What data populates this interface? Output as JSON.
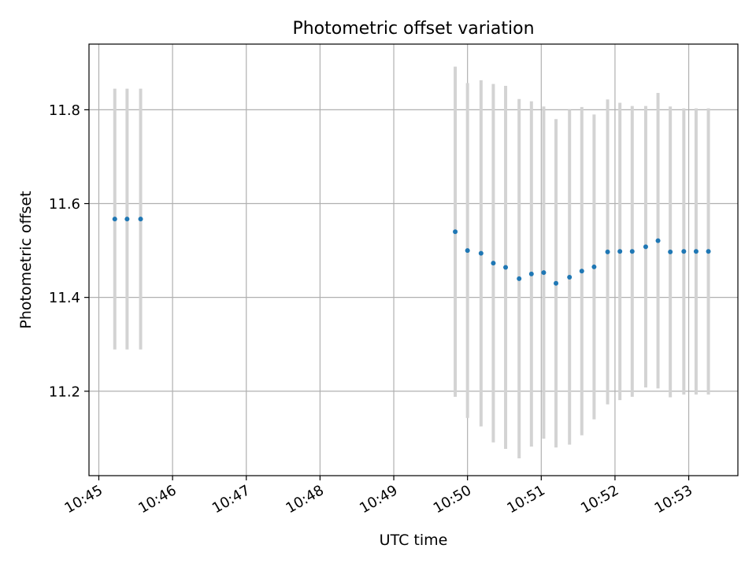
{
  "chart_data": {
    "type": "scatter",
    "title": "Photometric offset variation",
    "xlabel": "UTC time",
    "ylabel": "Photometric offset",
    "x_ticks": [
      "10:45",
      "10:46",
      "10:47",
      "10:48",
      "10:49",
      "10:50",
      "10:51",
      "10:52",
      "10:53"
    ],
    "y_ticks": [
      "11.2",
      "11.4",
      "11.6",
      "11.8"
    ],
    "xlim": [
      "10:44:52",
      "10:53:40"
    ],
    "ylim": [
      11.02,
      11.94
    ],
    "grid": true,
    "colors": {
      "point": "#1f77b4",
      "errorbar": "#d3d3d3",
      "grid": "#b0b0b0"
    },
    "points": [
      {
        "t": "10:45:13",
        "y": 11.567,
        "err": 0.278
      },
      {
        "t": "10:45:23",
        "y": 11.567,
        "err": 0.278
      },
      {
        "t": "10:45:34",
        "y": 11.567,
        "err": 0.278
      },
      {
        "t": "10:49:50",
        "y": 11.54,
        "err": 0.352
      },
      {
        "t": "10:50:00",
        "y": 11.5,
        "err": 0.357
      },
      {
        "t": "10:50:11",
        "y": 11.494,
        "err": 0.369
      },
      {
        "t": "10:50:21",
        "y": 11.473,
        "err": 0.382
      },
      {
        "t": "10:50:31",
        "y": 11.464,
        "err": 0.387
      },
      {
        "t": "10:50:42",
        "y": 11.44,
        "err": 0.383
      },
      {
        "t": "10:50:52",
        "y": 11.45,
        "err": 0.368
      },
      {
        "t": "10:51:02",
        "y": 11.453,
        "err": 0.354
      },
      {
        "t": "10:51:12",
        "y": 11.43,
        "err": 0.35
      },
      {
        "t": "10:51:23",
        "y": 11.443,
        "err": 0.357
      },
      {
        "t": "10:51:33",
        "y": 11.456,
        "err": 0.35
      },
      {
        "t": "10:51:43",
        "y": 11.465,
        "err": 0.325
      },
      {
        "t": "10:51:54",
        "y": 11.497,
        "err": 0.325
      },
      {
        "t": "10:52:04",
        "y": 11.498,
        "err": 0.317
      },
      {
        "t": "10:52:14",
        "y": 11.498,
        "err": 0.31
      },
      {
        "t": "10:52:25",
        "y": 11.508,
        "err": 0.3
      },
      {
        "t": "10:52:35",
        "y": 11.521,
        "err": 0.315
      },
      {
        "t": "10:52:45",
        "y": 11.497,
        "err": 0.31
      },
      {
        "t": "10:52:56",
        "y": 11.498,
        "err": 0.305
      },
      {
        "t": "10:53:06",
        "y": 11.498,
        "err": 0.305
      },
      {
        "t": "10:53:16",
        "y": 11.498,
        "err": 0.305
      }
    ]
  }
}
